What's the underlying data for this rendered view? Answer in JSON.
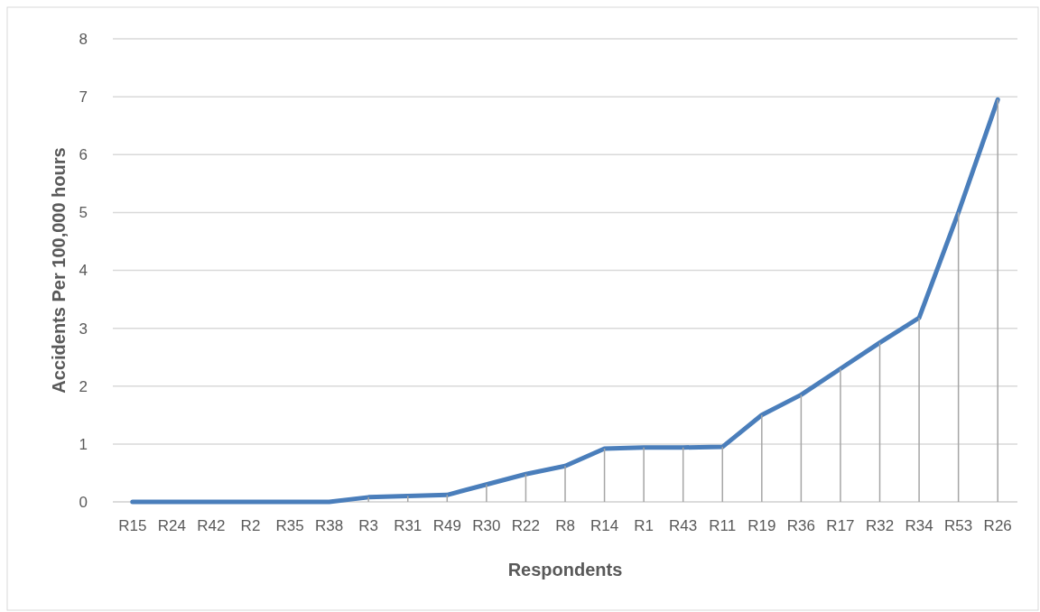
{
  "chart_data": {
    "type": "line",
    "xlabel": "Respondents",
    "ylabel": "Accidents Per 100,000 hours",
    "categories": [
      "R15",
      "R24",
      "R42",
      "R2",
      "R35",
      "R38",
      "R3",
      "R31",
      "R49",
      "R30",
      "R22",
      "R8",
      "R14",
      "R1",
      "R43",
      "R11",
      "R19",
      "R36",
      "R17",
      "R32",
      "R34",
      "R53",
      "R26"
    ],
    "series": [
      {
        "type": "bar",
        "color": "#a6a6a6",
        "values": [
          0,
          0,
          0,
          0,
          0,
          0,
          0.08,
          0.1,
          0.12,
          0.3,
          0.48,
          0.62,
          0.92,
          0.94,
          0.94,
          0.95,
          1.5,
          1.85,
          2.3,
          2.75,
          3.18,
          5.0,
          6.95
        ]
      },
      {
        "color": "#4a7ebb",
        "values": [
          0,
          0,
          0,
          0,
          0,
          0,
          0.08,
          0.1,
          0.12,
          0.3,
          0.48,
          0.62,
          0.92,
          0.94,
          0.94,
          0.95,
          1.5,
          1.85,
          2.3,
          2.75,
          3.18,
          5.0,
          6.95
        ]
      }
    ],
    "ylim": [
      0,
      8
    ],
    "yticks": [
      0,
      1,
      2,
      3,
      4,
      5,
      6,
      7,
      8
    ],
    "grid": "y",
    "marker": "none",
    "line_style": "solid"
  }
}
